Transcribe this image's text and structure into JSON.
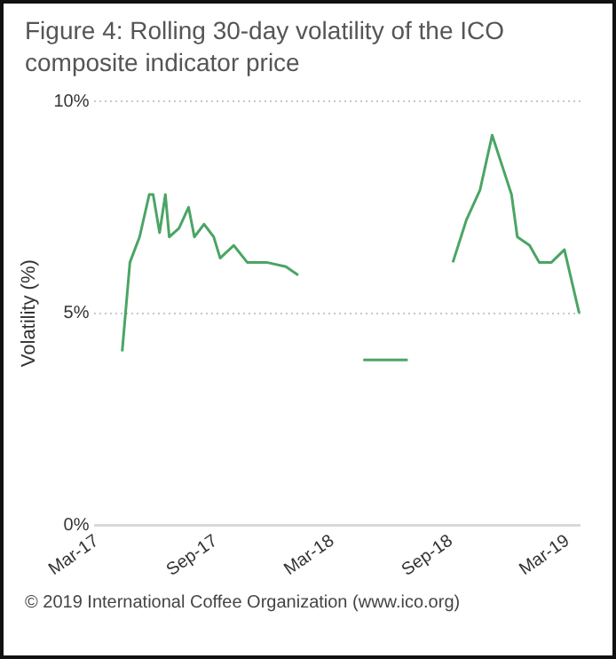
{
  "chart_data": {
    "type": "line",
    "title": "Figure 4:    Rolling 30-day volatility of the ICO composite indicator price",
    "ylabel": "Volatility (%)",
    "annotations": [
      "© 2019 International Coffee Organization (www.ico.org)"
    ],
    "x": [
      "2017-04-09",
      "2017-04-21",
      "2017-05-06",
      "2017-05-21",
      "2017-05-27",
      "2017-06-06",
      "2017-06-15",
      "2017-06-21",
      "2017-07-06",
      "2017-07-21",
      "2017-07-30",
      "2017-08-14",
      "2017-08-29",
      "2017-09-08",
      "2017-09-29",
      "2017-10-20",
      "2017-11-19",
      "2017-12-19",
      "2018-01-07",
      "2018-02-15",
      "2018-04-18",
      "2018-06-26",
      "2018-08-01",
      "2018-09-04",
      "2018-09-25",
      "2018-10-16",
      "2018-11-04",
      "2018-11-19",
      "2018-12-04",
      "2018-12-13",
      "2019-01-01",
      "2019-01-16",
      "2019-02-04",
      "2019-02-24",
      "2019-03-19"
    ],
    "series": [
      {
        "color": "#4aa564",
        "values": [
          4.1,
          6.2,
          6.8,
          7.8,
          7.8,
          6.9,
          7.8,
          6.8,
          7.0,
          7.5,
          6.8,
          7.1,
          6.8,
          6.3,
          6.6,
          6.2,
          6.2,
          6.1,
          5.9,
          null,
          3.9,
          3.9,
          null,
          6.2,
          7.2,
          7.9,
          9.2,
          8.5,
          7.8,
          6.8,
          6.6,
          6.2,
          6.2,
          6.5,
          5.0
        ]
      }
    ],
    "xlim": [
      "2017-02-25",
      "2019-03-21"
    ],
    "xticks": [
      {
        "value": "2017-03-01",
        "label": "Mar-17"
      },
      {
        "value": "2017-09-01",
        "label": "Sep-17"
      },
      {
        "value": "2018-03-01",
        "label": "Mar-18"
      },
      {
        "value": "2018-09-01",
        "label": "Sep-18"
      },
      {
        "value": "2019-03-01",
        "label": "Mar-19"
      }
    ],
    "ylim": [
      0,
      10
    ],
    "yticks": [
      {
        "value": 0,
        "label": "0%"
      },
      {
        "value": 5,
        "label": "5%"
      },
      {
        "value": 10,
        "label": "10%"
      }
    ],
    "grid": "y",
    "legend": false,
    "marker": "none",
    "line_style": "solid"
  }
}
